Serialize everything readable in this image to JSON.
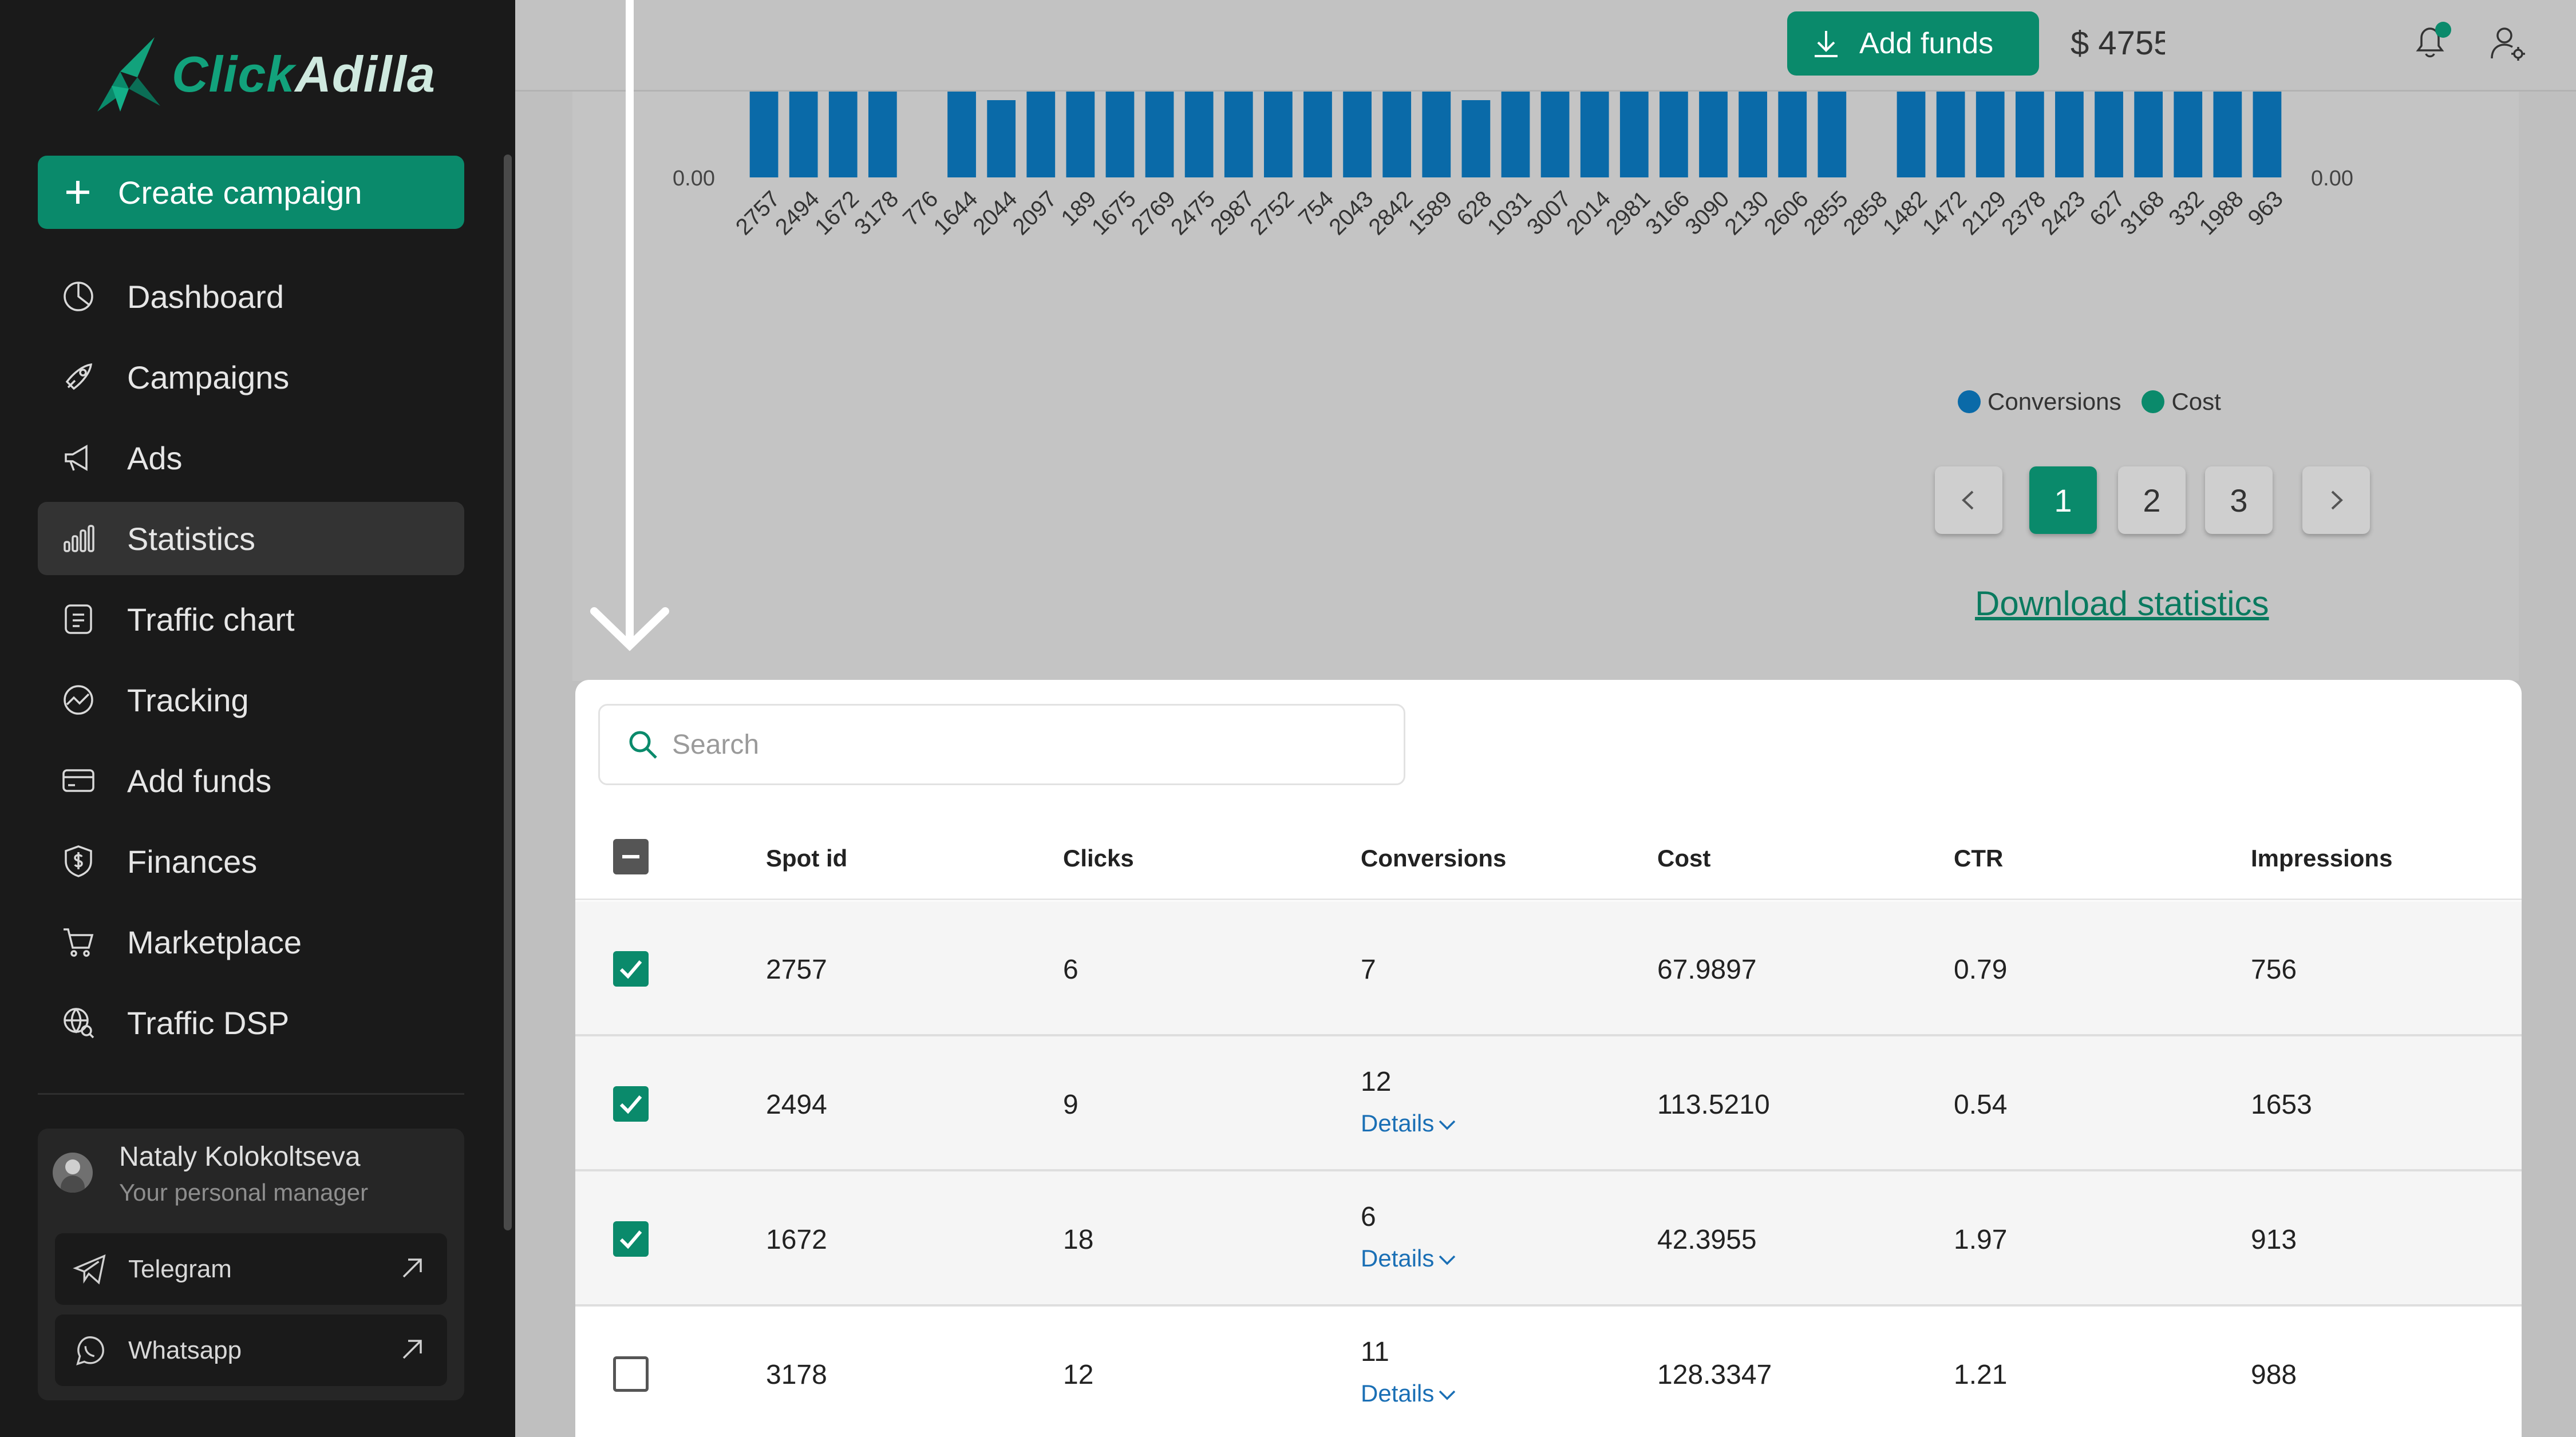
{
  "brand": {
    "name_a": "Click",
    "name_b": "Adilla"
  },
  "sidebar": {
    "create_label": "Create campaign",
    "items": [
      {
        "label": "Dashboard",
        "icon": "dashboard-icon",
        "active": false
      },
      {
        "label": "Campaigns",
        "icon": "rocket-icon",
        "active": false
      },
      {
        "label": "Ads",
        "icon": "megaphone-icon",
        "active": false
      },
      {
        "label": "Statistics",
        "icon": "bar-chart-icon",
        "active": true
      },
      {
        "label": "Traffic chart",
        "icon": "list-doc-icon",
        "active": false
      },
      {
        "label": "Tracking",
        "icon": "tracking-icon",
        "active": false
      },
      {
        "label": "Add funds",
        "icon": "card-icon",
        "active": false
      },
      {
        "label": "Finances",
        "icon": "shield-dollar-icon",
        "active": false
      },
      {
        "label": "Marketplace",
        "icon": "cart-icon",
        "active": false
      },
      {
        "label": "Traffic DSP",
        "icon": "globe-search-icon",
        "active": false
      }
    ],
    "manager": {
      "name": "Nataly Kolokoltseva",
      "role": "Your personal manager",
      "contacts": [
        {
          "label": "Telegram",
          "icon": "telegram-icon"
        },
        {
          "label": "Whatsapp",
          "icon": "whatsapp-icon"
        }
      ]
    }
  },
  "topbar": {
    "add_funds_label": "Add funds",
    "balance": "$ 4755"
  },
  "colors": {
    "accent": "#0a8a6b",
    "conversions": "#0a6aa8",
    "cost": "#0a8a6b"
  },
  "chart_data": {
    "type": "bar",
    "categories": [
      "2757",
      "2494",
      "1672",
      "3178",
      "776",
      "1644",
      "2044",
      "2097",
      "189",
      "1675",
      "2769",
      "2475",
      "2987",
      "2752",
      "754",
      "2043",
      "2842",
      "1589",
      "628",
      "1031",
      "3007",
      "2014",
      "2981",
      "3166",
      "3090",
      "2130",
      "2606",
      "2855",
      "2858",
      "1482",
      "1472",
      "2129",
      "2378",
      "2423",
      "627",
      "3168",
      "332",
      "1988",
      "963"
    ],
    "series": [
      {
        "name": "Conversions",
        "values": [
          1,
          1,
          1,
          1,
          0,
          1,
          0.9,
          1,
          1,
          1,
          1,
          1,
          1,
          1,
          1,
          1,
          1,
          1,
          0.9,
          1,
          1,
          1,
          1,
          1,
          1,
          1,
          1,
          1,
          0,
          1,
          1,
          1,
          1,
          1,
          1,
          1,
          1,
          1,
          1
        ]
      }
    ],
    "left_axis_label": "0.00",
    "right_axis_label": "0.00",
    "legend": [
      "Conversions",
      "Cost"
    ],
    "legend_position": "bottom"
  },
  "pagination": {
    "pages": [
      "1",
      "2",
      "3"
    ],
    "current": "1"
  },
  "download_label": "Download statistics",
  "search": {
    "placeholder": "Search"
  },
  "table": {
    "columns": [
      "Spot id",
      "Clicks",
      "Conversions",
      "Cost",
      "CTR",
      "Impressions"
    ],
    "details_label": "Details",
    "rows": [
      {
        "checked": true,
        "spot": "2757",
        "clicks": "6",
        "conversions": "7",
        "details": false,
        "cost": "67.9897",
        "ctr": "0.79",
        "impressions": "756"
      },
      {
        "checked": true,
        "spot": "2494",
        "clicks": "9",
        "conversions": "12",
        "details": true,
        "cost": "113.5210",
        "ctr": "0.54",
        "impressions": "1653"
      },
      {
        "checked": true,
        "spot": "1672",
        "clicks": "18",
        "conversions": "6",
        "details": true,
        "cost": "42.3955",
        "ctr": "1.97",
        "impressions": "913"
      },
      {
        "checked": false,
        "spot": "3178",
        "clicks": "12",
        "conversions": "11",
        "details": true,
        "cost": "128.3347",
        "ctr": "1.21",
        "impressions": "988"
      }
    ]
  }
}
